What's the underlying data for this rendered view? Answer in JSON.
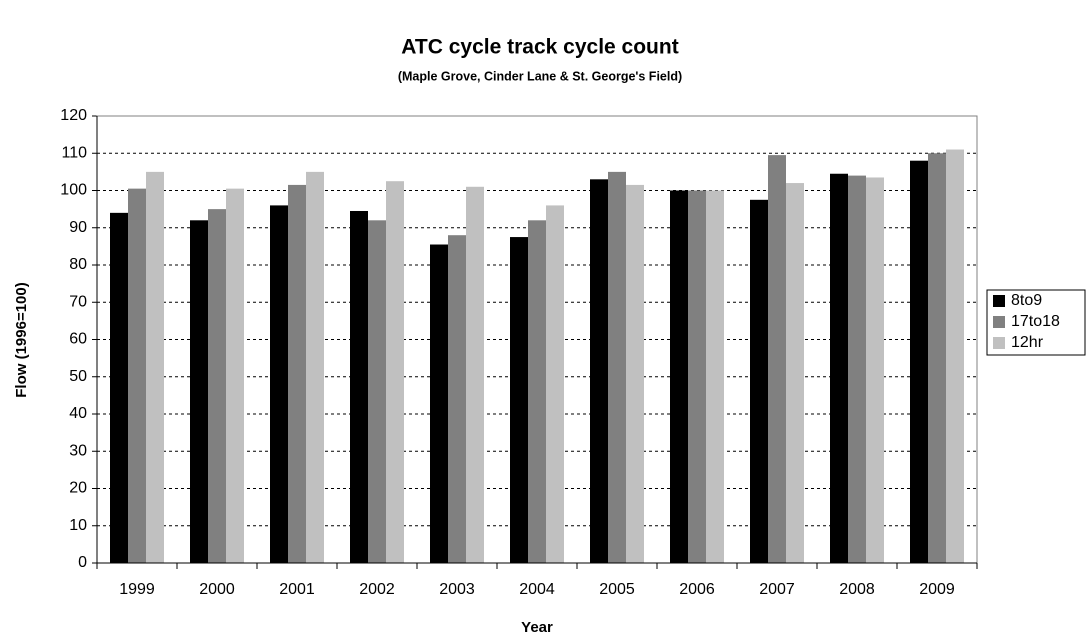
{
  "chart_data": {
    "type": "bar",
    "title": "ATC cycle track cycle count",
    "subtitle": "(Maple Grove, Cinder Lane & St. George's Field)",
    "x_label": "Year",
    "y_label": "Flow (1996=100)",
    "categories": [
      "1999",
      "2000",
      "2001",
      "2002",
      "2003",
      "2004",
      "2005",
      "2006",
      "2007",
      "2008",
      "2009"
    ],
    "series": [
      {
        "name": "8to9",
        "color": "#000000",
        "values": [
          94,
          92,
          96,
          94.5,
          85.5,
          87.5,
          103,
          100,
          97.5,
          104.5,
          108
        ]
      },
      {
        "name": "17to18",
        "color": "#808080",
        "values": [
          100.5,
          95,
          101.5,
          92,
          88,
          92,
          105,
          100,
          109.5,
          104,
          110
        ]
      },
      {
        "name": "12hr",
        "color": "#c0c0c0",
        "values": [
          105,
          100.5,
          105,
          102.5,
          101,
          96,
          101.5,
          100,
          102,
          103.5,
          111
        ]
      }
    ],
    "ylim": [
      0,
      120
    ],
    "yticks": [
      0,
      10,
      20,
      30,
      40,
      50,
      60,
      70,
      80,
      90,
      100,
      110,
      120
    ],
    "grid": true,
    "legend": "right"
  }
}
